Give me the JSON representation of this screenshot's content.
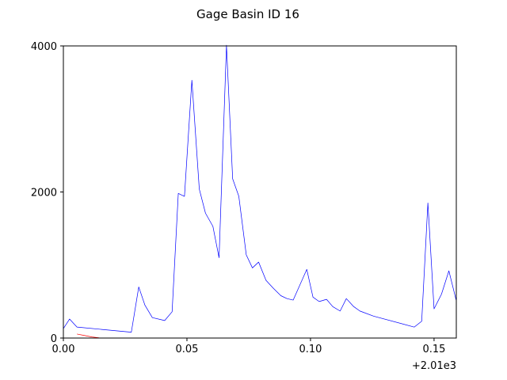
{
  "chart_data": {
    "type": "line",
    "title": "Gage Basin ID 16",
    "xlabel": "",
    "ylabel": "",
    "xlim": [
      0.0,
      0.159
    ],
    "ylim": [
      0,
      4000
    ],
    "x_offset_label": "+2.01e3",
    "x_ticks": [
      0.0,
      0.05,
      0.1,
      0.15
    ],
    "x_tick_labels": [
      "0.00",
      "0.05",
      "0.10",
      "0.15"
    ],
    "y_ticks": [
      0,
      2000,
      4000
    ],
    "y_tick_labels": [
      "0",
      "2000",
      "4000"
    ],
    "grid": false,
    "series": [
      {
        "name": "series-blue",
        "color": "#0000ff",
        "x": [
          0.0,
          0.0025,
          0.0055,
          0.0275,
          0.0305,
          0.033,
          0.036,
          0.041,
          0.044,
          0.0465,
          0.049,
          0.052,
          0.055,
          0.0575,
          0.0605,
          0.063,
          0.066,
          0.0685,
          0.071,
          0.074,
          0.0765,
          0.079,
          0.082,
          0.085,
          0.088,
          0.0905,
          0.093,
          0.0985,
          0.101,
          0.1035,
          0.1065,
          0.109,
          0.112,
          0.1145,
          0.1175,
          0.12,
          0.1255,
          0.142,
          0.145,
          0.1475,
          0.15,
          0.153,
          0.156,
          0.159
        ],
        "values": [
          130,
          260,
          150,
          80,
          700,
          450,
          280,
          240,
          360,
          1980,
          1940,
          3530,
          2040,
          1710,
          1530,
          1100,
          4010,
          2180,
          1940,
          1140,
          960,
          1040,
          790,
          680,
          580,
          540,
          520,
          940,
          560,
          500,
          530,
          430,
          370,
          540,
          430,
          370,
          300,
          150,
          230,
          1850,
          400,
          600,
          920,
          510
        ]
      },
      {
        "name": "series-red",
        "color": "#ff0000",
        "x": [
          0.0055,
          0.0085,
          0.0115,
          0.0145
        ],
        "values": [
          55,
          35,
          15,
          3
        ]
      }
    ]
  }
}
